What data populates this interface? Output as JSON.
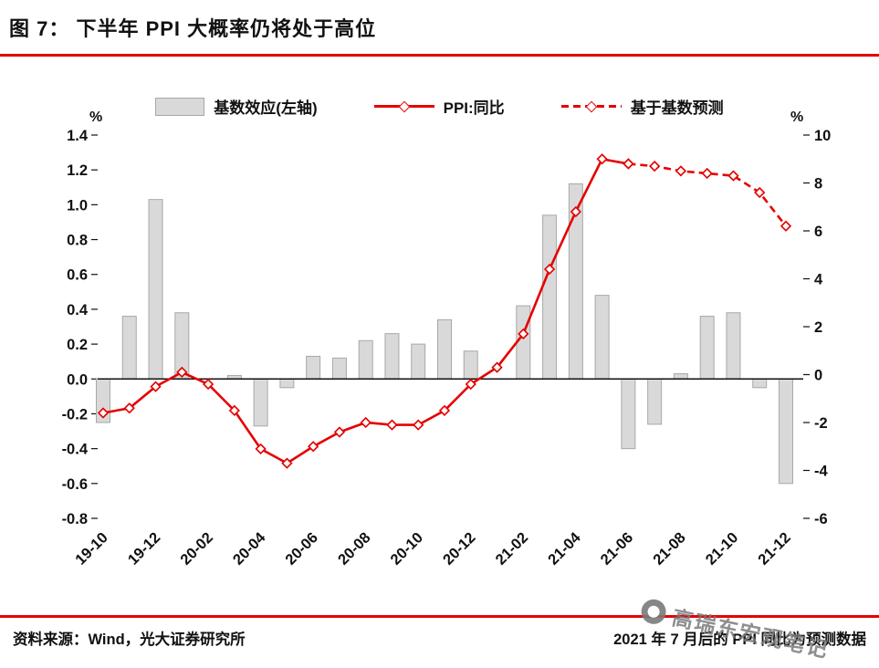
{
  "header": {
    "title": "图 7： 下半年 PPI 大概率仍将处于高位"
  },
  "legend": {
    "bar_label": "基数效应(左轴)",
    "line_label": "PPI:同比",
    "forecast_label": "基于基数预测"
  },
  "axes": {
    "left_unit": "%",
    "right_unit": "%"
  },
  "footer": {
    "source": "资料来源：Wind，光大证券研究所",
    "note": "2021 年 7 月后的 PPI 同比为预测数据"
  },
  "watermark": {
    "text": "高瑞东宏观笔记"
  },
  "colors": {
    "accent_red": "#e60000",
    "bar_fill": "#d9d9d9",
    "bar_border": "#a8a8a8",
    "axis_black": "#111111"
  },
  "chart_data": {
    "type": "combo",
    "title": "下半年 PPI 大概率仍将处于高位",
    "categories": [
      "19-10",
      "19-11",
      "19-12",
      "20-01",
      "20-02",
      "20-03",
      "20-04",
      "20-05",
      "20-06",
      "20-07",
      "20-08",
      "20-09",
      "20-10",
      "20-11",
      "20-12",
      "21-01",
      "21-02",
      "21-03",
      "21-04",
      "21-05",
      "21-06",
      "21-07",
      "21-08",
      "21-09",
      "21-10",
      "21-11",
      "21-12"
    ],
    "x_label_every": 2,
    "left_axis": {
      "min": -0.8,
      "max": 1.4,
      "step": 0.2,
      "unit": "%",
      "decimals": 1
    },
    "right_axis": {
      "min": -6,
      "max": 10,
      "step": 2,
      "unit": "%",
      "decimals": 0
    },
    "grid": false,
    "legend_position": "top",
    "series": [
      {
        "name": "基数效应(左轴)",
        "type": "bar",
        "axis": "left",
        "values": [
          -0.25,
          0.36,
          1.03,
          0.38,
          0,
          0.02,
          -0.27,
          -0.05,
          0.13,
          0.12,
          0.22,
          0.26,
          0.2,
          0.34,
          0.16,
          0,
          0.42,
          0.94,
          1.12,
          0.48,
          -0.4,
          -0.26,
          0.03,
          0.36,
          0.38,
          -0.05,
          -0.6
        ]
      },
      {
        "name": "PPI:同比",
        "type": "line",
        "axis": "right",
        "dash": false,
        "values": [
          -1.6,
          -1.4,
          -0.5,
          0.1,
          -0.4,
          -1.5,
          -3.1,
          -3.7,
          -3.0,
          -2.4,
          -2.0,
          -2.1,
          -2.1,
          -1.5,
          -0.4,
          0.3,
          1.7,
          4.4,
          6.8,
          9.0,
          8.8,
          null,
          null,
          null,
          null,
          null,
          null
        ]
      },
      {
        "name": "基于基数预测",
        "type": "line",
        "axis": "right",
        "dash": true,
        "values": [
          null,
          null,
          null,
          null,
          null,
          null,
          null,
          null,
          null,
          null,
          null,
          null,
          null,
          null,
          null,
          null,
          null,
          null,
          null,
          null,
          8.8,
          8.7,
          8.5,
          8.4,
          8.3,
          7.6,
          6.2
        ]
      }
    ]
  }
}
